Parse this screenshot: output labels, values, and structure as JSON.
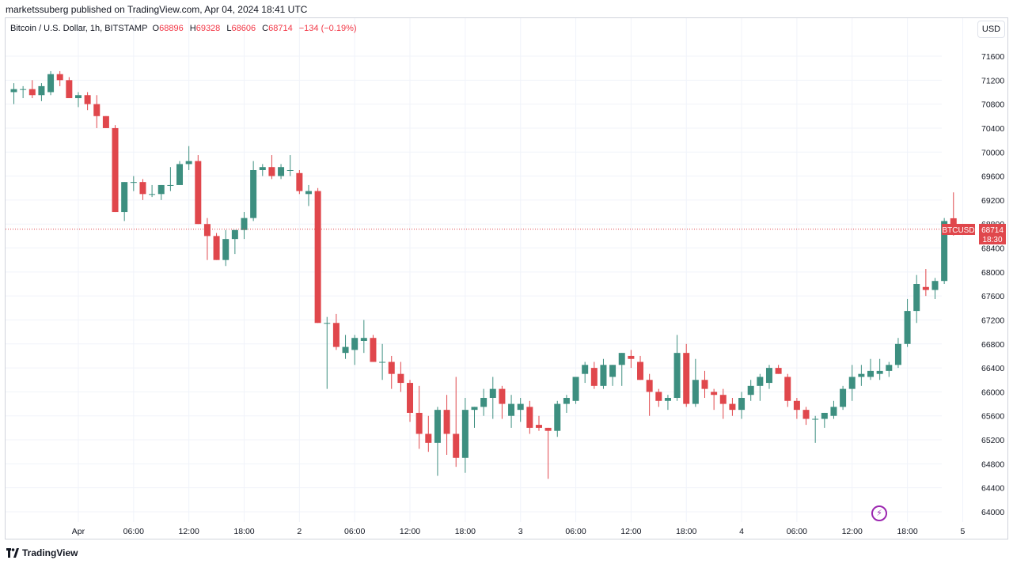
{
  "header": {
    "publish_line": "marketssuberg published on TradingView.com, Apr 04, 2024 18:41 UTC"
  },
  "legend": {
    "symbol": "Bitcoin / U.S. Dollar, 1h, BITSTAMP",
    "o_label": "O",
    "o_value": "68896",
    "h_label": "H",
    "h_value": "69328",
    "l_label": "L",
    "l_value": "68606",
    "c_label": "C",
    "c_value": "68714",
    "change": "−134 (−0.19%)"
  },
  "currency_button": "USD",
  "price_tag": {
    "symbol": "BTCUSD",
    "price": "68714",
    "countdown": "18:30"
  },
  "footer": {
    "brand": "TradingView"
  },
  "colors": {
    "up": "#26a69a",
    "up_fill": "#3d8f80",
    "down": "#e0474c",
    "grid": "#f0f3fa",
    "axis_text": "#131722"
  },
  "icons": {
    "footer_logo": "tradingview-logo-icon",
    "snapshot": "lightning-icon"
  },
  "chart_data": {
    "type": "candlestick",
    "interval": "1h",
    "y_axis": {
      "position": "right",
      "ticks": [
        64000,
        64400,
        64800,
        65200,
        65600,
        66000,
        66400,
        66800,
        67200,
        67600,
        68000,
        68400,
        68800,
        69200,
        69600,
        70000,
        70400,
        70800,
        71200,
        71600
      ],
      "ylim": [
        63850,
        71900
      ]
    },
    "x_axis": {
      "ticks": [
        {
          "i": 7,
          "label": "Apr"
        },
        {
          "i": 13,
          "label": "06:00"
        },
        {
          "i": 19,
          "label": "12:00"
        },
        {
          "i": 25,
          "label": "18:00"
        },
        {
          "i": 31,
          "label": "2"
        },
        {
          "i": 37,
          "label": "06:00"
        },
        {
          "i": 43,
          "label": "12:00"
        },
        {
          "i": 49,
          "label": "18:00"
        },
        {
          "i": 55,
          "label": "3"
        },
        {
          "i": 61,
          "label": "06:00"
        },
        {
          "i": 67,
          "label": "12:00"
        },
        {
          "i": 73,
          "label": "18:00"
        },
        {
          "i": 79,
          "label": "4"
        },
        {
          "i": 85,
          "label": "06:00"
        },
        {
          "i": 91,
          "label": "12:00"
        },
        {
          "i": 97,
          "label": "18:00"
        },
        {
          "i": 103,
          "label": "5"
        }
      ]
    },
    "grid": true,
    "last_price_line": 68714,
    "candles": [
      [
        71000,
        71150,
        70800,
        71050
      ],
      [
        71050,
        71100,
        70900,
        71050
      ],
      [
        71050,
        71200,
        70900,
        70950
      ],
      [
        70950,
        71150,
        70850,
        71100
      ],
      [
        71000,
        71350,
        70950,
        71300
      ],
      [
        71300,
        71350,
        71100,
        71200
      ],
      [
        71200,
        71250,
        70950,
        70900
      ],
      [
        70900,
        71000,
        70750,
        70950
      ],
      [
        70950,
        71000,
        70700,
        70800
      ],
      [
        70800,
        70950,
        70400,
        70600
      ],
      [
        70600,
        70600,
        70400,
        70400
      ],
      [
        70400,
        70450,
        69000,
        69000
      ],
      [
        69000,
        69500,
        68850,
        69500
      ],
      [
        69500,
        69600,
        69350,
        69500
      ],
      [
        69500,
        69550,
        69200,
        69300
      ],
      [
        69300,
        69450,
        69250,
        69300
      ],
      [
        69300,
        69450,
        69200,
        69450
      ],
      [
        69450,
        69750,
        69350,
        69450
      ],
      [
        69450,
        69850,
        69450,
        69800
      ],
      [
        69800,
        70100,
        69700,
        69850
      ],
      [
        69850,
        69950,
        68800,
        68800
      ],
      [
        68800,
        68900,
        68200,
        68600
      ],
      [
        68600,
        68650,
        68200,
        68200
      ],
      [
        68200,
        68700,
        68100,
        68550
      ],
      [
        68550,
        68700,
        68300,
        68700
      ],
      [
        68700,
        69000,
        68550,
        68900
      ],
      [
        68900,
        69850,
        68850,
        69700
      ],
      [
        69700,
        69800,
        69600,
        69750
      ],
      [
        69750,
        69950,
        69550,
        69600
      ],
      [
        69600,
        69800,
        69550,
        69750
      ],
      [
        69700,
        69950,
        69600,
        69700
      ],
      [
        69650,
        69700,
        69300,
        69350
      ],
      [
        69300,
        69450,
        69100,
        69350
      ],
      [
        69350,
        69400,
        67150,
        67150
      ],
      [
        67150,
        67250,
        66050,
        67150
      ],
      [
        67150,
        67300,
        66700,
        66750
      ],
      [
        66650,
        66950,
        66550,
        66750
      ],
      [
        66700,
        66950,
        66450,
        66900
      ],
      [
        66850,
        67200,
        66650,
        66900
      ],
      [
        66900,
        66950,
        66500,
        66500
      ],
      [
        66500,
        66800,
        66200,
        66500
      ],
      [
        66500,
        66600,
        66050,
        66300
      ],
      [
        66300,
        66500,
        66000,
        66150
      ],
      [
        66150,
        66200,
        65500,
        65650
      ],
      [
        65650,
        66100,
        65050,
        65300
      ],
      [
        65300,
        65600,
        65000,
        65150
      ],
      [
        65150,
        65750,
        64600,
        65700
      ],
      [
        65700,
        65950,
        64950,
        65300
      ],
      [
        65300,
        66250,
        64750,
        64900
      ],
      [
        64900,
        65900,
        64650,
        65700
      ],
      [
        65700,
        65750,
        65400,
        65750
      ],
      [
        65750,
        66050,
        65600,
        65900
      ],
      [
        65900,
        66250,
        65550,
        66050
      ],
      [
        66050,
        66100,
        65550,
        65800
      ],
      [
        65600,
        65950,
        65400,
        65800
      ],
      [
        65700,
        65900,
        65500,
        65800
      ],
      [
        65750,
        65850,
        65300,
        65400
      ],
      [
        65450,
        65600,
        65350,
        65400
      ],
      [
        65400,
        65400,
        64550,
        65350
      ],
      [
        65350,
        65850,
        65250,
        65800
      ],
      [
        65800,
        65950,
        65650,
        65900
      ],
      [
        65850,
        66250,
        65800,
        66250
      ],
      [
        66300,
        66500,
        66150,
        66450
      ],
      [
        66400,
        66500,
        66050,
        66100
      ],
      [
        66100,
        66550,
        66050,
        66450
      ],
      [
        66250,
        66450,
        66100,
        66450
      ],
      [
        66450,
        66650,
        66100,
        66650
      ],
      [
        66600,
        66700,
        66400,
        66550
      ],
      [
        66500,
        66600,
        66200,
        66200
      ],
      [
        66200,
        66300,
        65600,
        66000
      ],
      [
        66000,
        66050,
        65750,
        65850
      ],
      [
        65850,
        65950,
        65700,
        65900
      ],
      [
        65900,
        66950,
        65850,
        66650
      ],
      [
        66650,
        66800,
        65750,
        65800
      ],
      [
        65800,
        66550,
        65750,
        66200
      ],
      [
        66200,
        66350,
        65900,
        66050
      ],
      [
        66000,
        66050,
        65700,
        65950
      ],
      [
        65950,
        66050,
        65550,
        65800
      ],
      [
        65800,
        65900,
        65600,
        65700
      ],
      [
        65700,
        66000,
        65550,
        65900
      ],
      [
        65950,
        66200,
        65850,
        66100
      ],
      [
        66100,
        66300,
        65850,
        66250
      ],
      [
        66150,
        66450,
        66050,
        66400
      ],
      [
        66400,
        66450,
        66300,
        66300
      ],
      [
        66250,
        66300,
        65750,
        65850
      ],
      [
        65850,
        65900,
        65550,
        65700
      ],
      [
        65700,
        65750,
        65450,
        65550
      ],
      [
        65550,
        65600,
        65150,
        65550
      ],
      [
        65550,
        65650,
        65400,
        65650
      ],
      [
        65600,
        65850,
        65550,
        65750
      ],
      [
        65750,
        66100,
        65700,
        66050
      ],
      [
        66050,
        66450,
        65850,
        66250
      ],
      [
        66250,
        66450,
        66100,
        66300
      ],
      [
        66250,
        66550,
        66200,
        66350
      ],
      [
        66300,
        66550,
        66200,
        66350
      ],
      [
        66350,
        66500,
        66250,
        66450
      ],
      [
        66450,
        66900,
        66400,
        66800
      ],
      [
        66800,
        67550,
        66750,
        67350
      ],
      [
        67350,
        67950,
        67150,
        67800
      ],
      [
        67750,
        68050,
        67600,
        67700
      ],
      [
        67700,
        67900,
        67550,
        67850
      ],
      [
        67850,
        68900,
        67800,
        68850
      ],
      [
        68896,
        69328,
        68606,
        68714
      ]
    ]
  }
}
